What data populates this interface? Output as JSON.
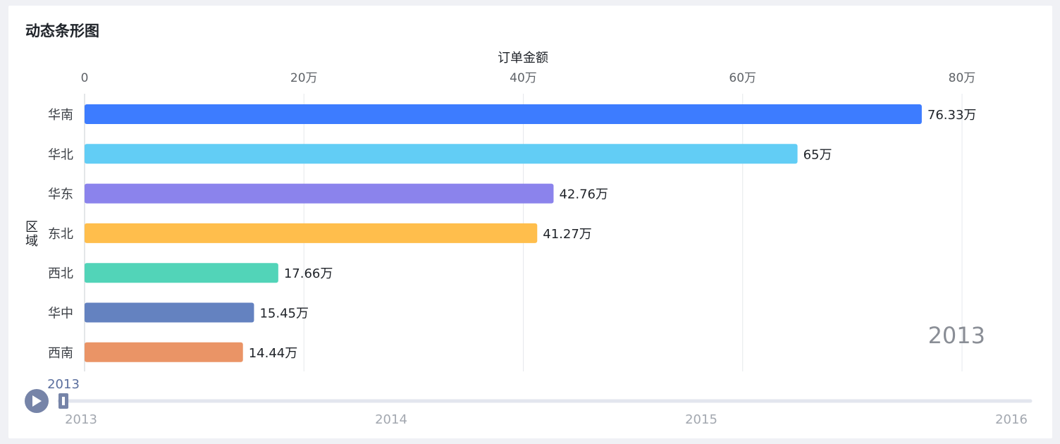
{
  "title": "动态条形图",
  "chart_data": {
    "type": "bar",
    "orientation": "horizontal",
    "xlabel": "订单金额",
    "ylabel": "区域",
    "xlim": [
      0,
      80
    ],
    "x_ticks": [
      "0",
      "20万",
      "40万",
      "60万",
      "80万"
    ],
    "categories": [
      "华南",
      "华北",
      "华东",
      "东北",
      "西北",
      "华中",
      "西南"
    ],
    "values": [
      76.33,
      65,
      42.76,
      41.27,
      17.66,
      15.45,
      14.44
    ],
    "value_labels": [
      "76.33万",
      "65万",
      "42.76万",
      "41.27万",
      "17.66万",
      "15.45万",
      "14.44万"
    ],
    "colors": [
      "#3d7cff",
      "#62cdf5",
      "#8b83ec",
      "#ffbe4c",
      "#52d4b8",
      "#6482c0",
      "#ea9466"
    ],
    "current_year": "2013",
    "grid": true
  },
  "timeline": {
    "current": "2013",
    "years": [
      "2013",
      "2014",
      "2015",
      "2016"
    ],
    "progress": 0
  }
}
